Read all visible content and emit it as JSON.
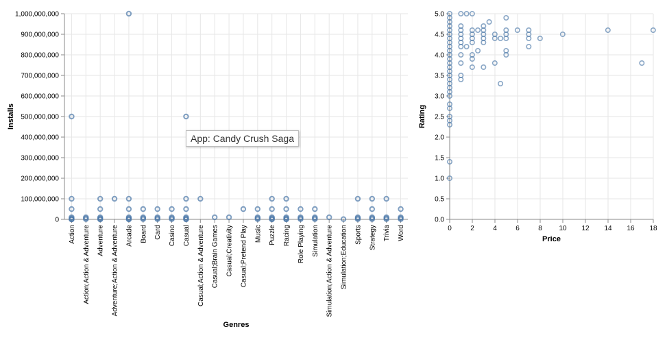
{
  "colors": {
    "point": "#4c78a8",
    "grid": "#e6e6e6",
    "axis": "#888888",
    "text": "#000000"
  },
  "tooltip": {
    "text": "App: Candy Crush Saga"
  },
  "chart_data": [
    {
      "type": "scatter",
      "xlabel": "Genres",
      "ylabel": "Installs",
      "ylim": [
        0,
        1000000000
      ],
      "yticks": [
        "0",
        "100,000,000",
        "200,000,000",
        "300,000,000",
        "400,000,000",
        "500,000,000",
        "600,000,000",
        "700,000,000",
        "800,000,000",
        "900,000,000",
        "1,000,000,000"
      ],
      "categories": [
        "Action",
        "Action;Action & Adventure",
        "Adventure",
        "Adventure;Action & Adventure",
        "Arcade",
        "Board",
        "Card",
        "Casino",
        "Casual",
        "Casual;Action & Adventure",
        "Casual;Brain Games",
        "Casual;Creativity",
        "Casual;Pretend Play",
        "Music",
        "Puzzle",
        "Racing",
        "Role Playing",
        "Simulation",
        "Simulation;Action & Adventure",
        "Simulation;Education",
        "Sports",
        "Strategy",
        "Trivia",
        "Word"
      ],
      "points": [
        [
          "Action",
          500000000
        ],
        [
          "Action",
          100000000
        ],
        [
          "Action",
          50000000
        ],
        [
          "Action",
          10000000
        ],
        [
          "Action",
          5000000
        ],
        [
          "Action",
          1000000
        ],
        [
          "Action",
          500000
        ],
        [
          "Action",
          100000
        ],
        [
          "Action;Action & Adventure",
          10000000
        ],
        [
          "Action;Action & Adventure",
          5000000
        ],
        [
          "Action;Action & Adventure",
          1000000
        ],
        [
          "Adventure",
          100000000
        ],
        [
          "Adventure",
          50000000
        ],
        [
          "Adventure",
          10000000
        ],
        [
          "Adventure",
          5000000
        ],
        [
          "Adventure",
          1000000
        ],
        [
          "Adventure",
          100000
        ],
        [
          "Adventure;Action & Adventure",
          100000000
        ],
        [
          "Arcade",
          1000000000
        ],
        [
          "Arcade",
          100000000
        ],
        [
          "Arcade",
          50000000
        ],
        [
          "Arcade",
          10000000
        ],
        [
          "Arcade",
          5000000
        ],
        [
          "Arcade",
          1000000
        ],
        [
          "Arcade",
          100000
        ],
        [
          "Board",
          50000000
        ],
        [
          "Board",
          10000000
        ],
        [
          "Board",
          5000000
        ],
        [
          "Board",
          1000000
        ],
        [
          "Card",
          50000000
        ],
        [
          "Card",
          10000000
        ],
        [
          "Card",
          5000000
        ],
        [
          "Card",
          1000000
        ],
        [
          "Casino",
          50000000
        ],
        [
          "Casino",
          10000000
        ],
        [
          "Casino",
          5000000
        ],
        [
          "Casino",
          1000000
        ],
        [
          "Casual",
          500000000
        ],
        [
          "Casual",
          100000000
        ],
        [
          "Casual",
          50000000
        ],
        [
          "Casual",
          10000000
        ],
        [
          "Casual",
          5000000
        ],
        [
          "Casual",
          1000000
        ],
        [
          "Casual",
          100000
        ],
        [
          "Casual;Action & Adventure",
          100000000
        ],
        [
          "Casual;Brain Games",
          10000000
        ],
        [
          "Casual;Creativity",
          10000000
        ],
        [
          "Casual;Pretend Play",
          50000000
        ],
        [
          "Music",
          50000000
        ],
        [
          "Music",
          10000000
        ],
        [
          "Music",
          5000000
        ],
        [
          "Music",
          1000000
        ],
        [
          "Puzzle",
          100000000
        ],
        [
          "Puzzle",
          50000000
        ],
        [
          "Puzzle",
          10000000
        ],
        [
          "Puzzle",
          5000000
        ],
        [
          "Puzzle",
          1000000
        ],
        [
          "Puzzle",
          100000
        ],
        [
          "Racing",
          100000000
        ],
        [
          "Racing",
          50000000
        ],
        [
          "Racing",
          10000000
        ],
        [
          "Racing",
          5000000
        ],
        [
          "Racing",
          1000000
        ],
        [
          "Racing",
          100000
        ],
        [
          "Role Playing",
          50000000
        ],
        [
          "Role Playing",
          10000000
        ],
        [
          "Role Playing",
          5000000
        ],
        [
          "Role Playing",
          1000000
        ],
        [
          "Simulation",
          50000000
        ],
        [
          "Simulation",
          10000000
        ],
        [
          "Simulation",
          5000000
        ],
        [
          "Simulation",
          1000000
        ],
        [
          "Simulation;Action & Adventure",
          10000000
        ],
        [
          "Simulation;Education",
          1000000
        ],
        [
          "Sports",
          100000000
        ],
        [
          "Sports",
          10000000
        ],
        [
          "Sports",
          5000000
        ],
        [
          "Sports",
          1000000
        ],
        [
          "Strategy",
          100000000
        ],
        [
          "Strategy",
          50000000
        ],
        [
          "Strategy",
          10000000
        ],
        [
          "Strategy",
          5000000
        ],
        [
          "Strategy",
          1000000
        ],
        [
          "Trivia",
          100000000
        ],
        [
          "Trivia",
          10000000
        ],
        [
          "Trivia",
          5000000
        ],
        [
          "Trivia",
          1000000
        ],
        [
          "Word",
          50000000
        ],
        [
          "Word",
          10000000
        ],
        [
          "Word",
          5000000
        ],
        [
          "Word",
          1000000
        ]
      ]
    },
    {
      "type": "scatter",
      "xlabel": "Price",
      "ylabel": "Rating",
      "xlim": [
        0,
        18
      ],
      "ylim": [
        0,
        5
      ],
      "xticks": [
        0,
        2,
        4,
        6,
        8,
        10,
        12,
        14,
        16,
        18
      ],
      "yticks": [
        "0.0",
        "0.5",
        "1.0",
        "1.5",
        "2.0",
        "2.5",
        "3.0",
        "3.5",
        "4.0",
        "4.5",
        "5.0"
      ],
      "points": [
        [
          0,
          5.0
        ],
        [
          0,
          4.9
        ],
        [
          0,
          4.8
        ],
        [
          0,
          4.7
        ],
        [
          0,
          4.6
        ],
        [
          0,
          4.5
        ],
        [
          0,
          4.4
        ],
        [
          0,
          4.3
        ],
        [
          0,
          4.2
        ],
        [
          0,
          4.1
        ],
        [
          0,
          4.0
        ],
        [
          0,
          3.9
        ],
        [
          0,
          3.8
        ],
        [
          0,
          3.7
        ],
        [
          0,
          3.6
        ],
        [
          0,
          3.5
        ],
        [
          0,
          3.4
        ],
        [
          0,
          3.3
        ],
        [
          0,
          3.2
        ],
        [
          0,
          3.1
        ],
        [
          0,
          3.0
        ],
        [
          0,
          2.8
        ],
        [
          0,
          2.7
        ],
        [
          0,
          2.5
        ],
        [
          0,
          2.4
        ],
        [
          0,
          2.3
        ],
        [
          0,
          1.4
        ],
        [
          0,
          1.0
        ],
        [
          0.99,
          5.0
        ],
        [
          0.99,
          4.7
        ],
        [
          0.99,
          4.6
        ],
        [
          0.99,
          4.5
        ],
        [
          0.99,
          4.4
        ],
        [
          0.99,
          4.3
        ],
        [
          0.99,
          4.2
        ],
        [
          0.99,
          4.0
        ],
        [
          0.99,
          3.8
        ],
        [
          0.99,
          3.5
        ],
        [
          0.99,
          3.4
        ],
        [
          1.49,
          5.0
        ],
        [
          1.49,
          4.2
        ],
        [
          1.99,
          5.0
        ],
        [
          1.99,
          4.6
        ],
        [
          1.99,
          4.5
        ],
        [
          1.99,
          4.4
        ],
        [
          1.99,
          4.3
        ],
        [
          1.99,
          4.0
        ],
        [
          1.99,
          3.9
        ],
        [
          1.99,
          3.7
        ],
        [
          2.49,
          4.6
        ],
        [
          2.49,
          4.1
        ],
        [
          2.99,
          4.7
        ],
        [
          2.99,
          4.6
        ],
        [
          2.99,
          4.5
        ],
        [
          2.99,
          4.4
        ],
        [
          2.99,
          4.3
        ],
        [
          2.99,
          3.7
        ],
        [
          3.49,
          4.8
        ],
        [
          3.99,
          4.5
        ],
        [
          3.99,
          4.4
        ],
        [
          3.99,
          3.8
        ],
        [
          4.49,
          4.4
        ],
        [
          4.49,
          3.3
        ],
        [
          4.99,
          4.9
        ],
        [
          4.99,
          4.6
        ],
        [
          4.99,
          4.5
        ],
        [
          4.99,
          4.4
        ],
        [
          4.99,
          4.1
        ],
        [
          4.99,
          4.0
        ],
        [
          5.99,
          4.6
        ],
        [
          6.99,
          4.6
        ],
        [
          6.99,
          4.5
        ],
        [
          6.99,
          4.4
        ],
        [
          6.99,
          4.2
        ],
        [
          7.99,
          4.4
        ],
        [
          9.99,
          4.5
        ],
        [
          13.99,
          4.6
        ],
        [
          16.99,
          3.8
        ],
        [
          17.99,
          4.6
        ]
      ]
    }
  ]
}
